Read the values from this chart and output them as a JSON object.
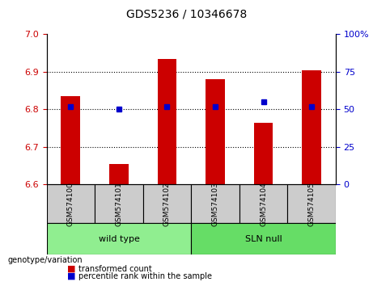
{
  "title": "GDS5236 / 10346678",
  "samples": [
    "GSM574100",
    "GSM574101",
    "GSM574102",
    "GSM574103",
    "GSM574104",
    "GSM574105"
  ],
  "bar_values": [
    6.835,
    6.655,
    6.935,
    6.88,
    6.765,
    6.905
  ],
  "bar_color": "#cc0000",
  "percentile_values": [
    52,
    50,
    52,
    52,
    55,
    52
  ],
  "percentile_color": "#0000cc",
  "ylim_left": [
    6.6,
    7.0
  ],
  "ylim_right": [
    0,
    100
  ],
  "yticks_left": [
    6.6,
    6.7,
    6.8,
    6.9,
    7.0
  ],
  "yticks_right": [
    0,
    25,
    50,
    75,
    100
  ],
  "ytick_labels_right": [
    "0",
    "25",
    "50",
    "75",
    "100%"
  ],
  "groups": [
    {
      "label": "wild type",
      "indices": [
        0,
        1,
        2
      ],
      "color": "#90ee90"
    },
    {
      "label": "SLN null",
      "indices": [
        3,
        4,
        5
      ],
      "color": "#66dd66"
    }
  ],
  "group_label_prefix": "genotype/variation",
  "legend_items": [
    {
      "label": "transformed count",
      "color": "#cc0000",
      "marker": "s"
    },
    {
      "label": "percentile rank within the sample",
      "color": "#0000cc",
      "marker": "s"
    }
  ],
  "bar_width": 0.4,
  "bottom_gray_color": "#cccccc",
  "grid_color": "#000000",
  "grid_linestyle": "dotted"
}
